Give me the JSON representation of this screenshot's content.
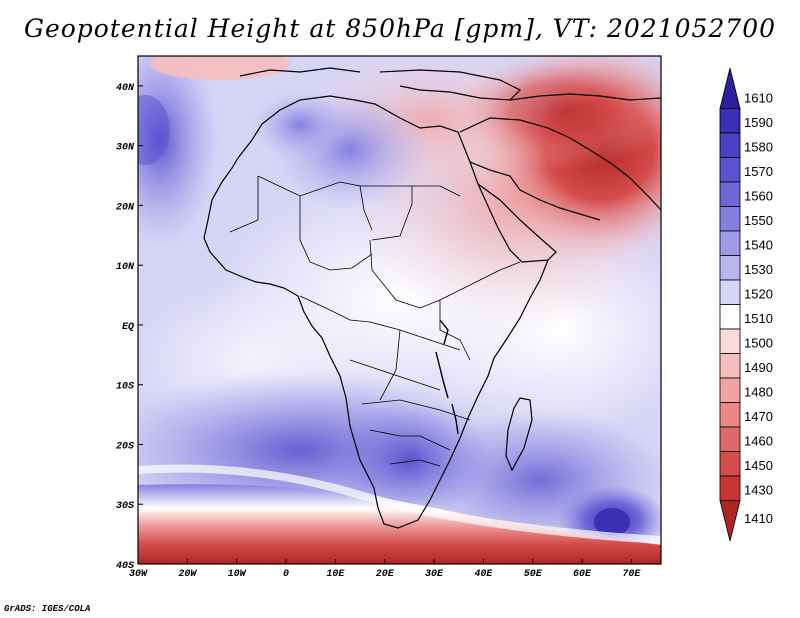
{
  "title": "Geopotential Height at 850hPa [gpm], VT: 2021052700",
  "credit": "GrADS: IGES/COLA",
  "map": {
    "region": "Africa",
    "lon_range": [
      -30,
      76
    ],
    "lat_range": [
      -40,
      45
    ],
    "lon_ticks": [
      "30W",
      "20W",
      "10W",
      "0",
      "10E",
      "20E",
      "30E",
      "40E",
      "50E",
      "60E",
      "70E"
    ],
    "lat_ticks": [
      "40S",
      "30S",
      "20S",
      "10S",
      "EQ",
      "10N",
      "20N",
      "30N",
      "40N"
    ]
  },
  "legend": {
    "levels": [
      {
        "label": "1610",
        "color": "#2d1fa0"
      },
      {
        "label": "1590",
        "color": "#3b2fb4"
      },
      {
        "label": "1580",
        "color": "#4a40c4"
      },
      {
        "label": "1570",
        "color": "#5a52cf"
      },
      {
        "label": "1560",
        "color": "#6e67d8"
      },
      {
        "label": "1550",
        "color": "#8580e0"
      },
      {
        "label": "1540",
        "color": "#9f9be8"
      },
      {
        "label": "1530",
        "color": "#b9b6ef"
      },
      {
        "label": "1520",
        "color": "#d7d5f6"
      },
      {
        "label": "1510",
        "color": "#ffffff"
      },
      {
        "label": "1500",
        "color": "#fbdada"
      },
      {
        "label": "1490",
        "color": "#f6bfbf"
      },
      {
        "label": "1480",
        "color": "#f0a3a3"
      },
      {
        "label": "1470",
        "color": "#e98686"
      },
      {
        "label": "1460",
        "color": "#e06969"
      },
      {
        "label": "1450",
        "color": "#d54c4c"
      },
      {
        "label": "1430",
        "color": "#c73535"
      },
      {
        "label": "1410",
        "color": "#b12424"
      }
    ]
  }
}
